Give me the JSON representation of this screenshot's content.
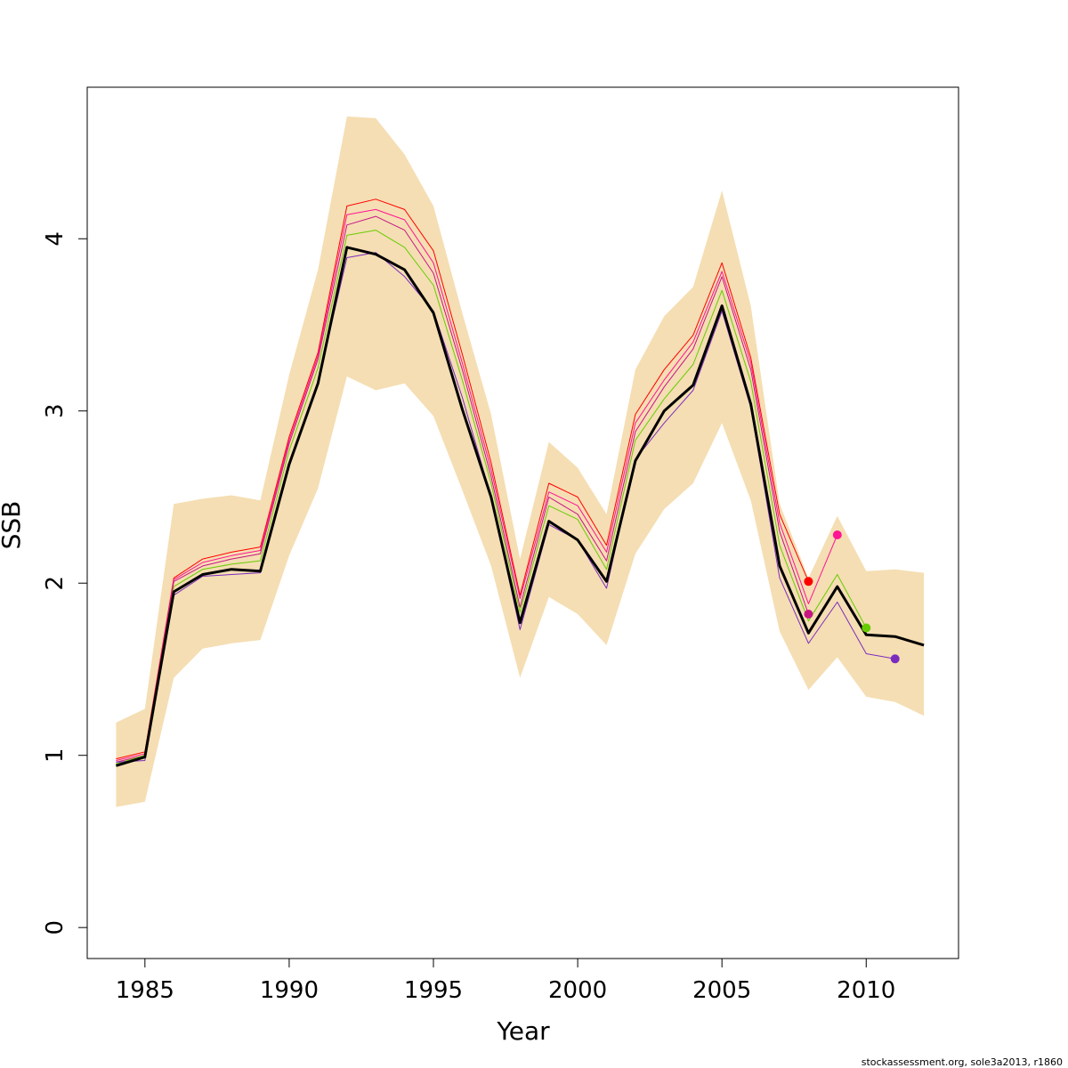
{
  "chart_data": {
    "type": "line",
    "xlabel": "Year",
    "ylabel": "SSB",
    "xlim": [
      1983,
      2013.2
    ],
    "ylim": [
      -0.18,
      4.88
    ],
    "x_ticks": [
      1985,
      1990,
      1995,
      2000,
      2005,
      2010
    ],
    "y_ticks": [
      0,
      1,
      2,
      3,
      4
    ],
    "colors": {
      "band": "#f5deb3",
      "main": "#000000"
    },
    "confidence_band": {
      "years": [
        1984,
        1985,
        1986,
        1987,
        1988,
        1989,
        1990,
        1991,
        1992,
        1993,
        1994,
        1995,
        1996,
        1997,
        1998,
        1999,
        2000,
        2001,
        2002,
        2003,
        2004,
        2005,
        2006,
        2007,
        2008,
        2009,
        2010,
        2011,
        2012
      ],
      "upper": [
        1.19,
        1.27,
        2.46,
        2.49,
        2.51,
        2.48,
        3.21,
        3.82,
        4.71,
        4.7,
        4.49,
        4.19,
        3.57,
        2.98,
        2.14,
        2.82,
        2.67,
        2.4,
        3.24,
        3.55,
        3.72,
        4.28,
        3.61,
        2.46,
        2.03,
        2.39,
        2.07,
        2.08,
        2.06
      ],
      "lower": [
        0.7,
        0.73,
        1.45,
        1.62,
        1.65,
        1.67,
        2.16,
        2.55,
        3.2,
        3.12,
        3.16,
        2.97,
        2.54,
        2.1,
        1.45,
        1.92,
        1.82,
        1.64,
        2.17,
        2.43,
        2.58,
        2.93,
        2.48,
        1.72,
        1.38,
        1.57,
        1.34,
        1.31,
        1.23
      ]
    },
    "series": [
      {
        "color": "#ff0000",
        "x": [
          1984,
          1985,
          1986,
          1987,
          1988,
          1989,
          1990,
          1991,
          1992,
          1993,
          1994,
          1995,
          1996,
          1997,
          1998,
          1999,
          2000,
          2001,
          2002,
          2003,
          2004,
          2005,
          2006,
          2007,
          2008
        ],
        "values": [
          0.98,
          1.02,
          2.03,
          2.14,
          2.18,
          2.21,
          2.85,
          3.34,
          4.19,
          4.23,
          4.17,
          3.93,
          3.33,
          2.7,
          1.93,
          2.58,
          2.5,
          2.22,
          2.98,
          3.24,
          3.44,
          3.86,
          3.31,
          2.4,
          2.01
        ]
      },
      {
        "color": "#ff1493",
        "x": [
          1984,
          1985,
          1986,
          1987,
          1988,
          1989,
          1990,
          1991,
          1992,
          1993,
          1994,
          1995,
          1996,
          1997,
          1998,
          1999,
          2000,
          2001,
          2002,
          2003,
          2004,
          2005,
          2006,
          2007,
          2008,
          2009
        ],
        "values": [
          0.97,
          1.01,
          2.02,
          2.12,
          2.16,
          2.19,
          2.83,
          3.32,
          4.14,
          4.17,
          4.11,
          3.86,
          3.28,
          2.66,
          1.91,
          2.53,
          2.45,
          2.18,
          2.93,
          3.18,
          3.4,
          3.81,
          3.28,
          2.35,
          1.88,
          2.28
        ]
      },
      {
        "color": "#c71585",
        "x": [
          1984,
          1985,
          1986,
          1987,
          1988,
          1989,
          1990,
          1991,
          1992,
          1993,
          1994,
          1995,
          1996,
          1997,
          1998,
          1999,
          2000,
          2001,
          2002,
          2003,
          2004,
          2005,
          2006,
          2007,
          2008
        ],
        "values": [
          0.96,
          1.0,
          2.01,
          2.1,
          2.14,
          2.17,
          2.81,
          3.3,
          4.08,
          4.13,
          4.05,
          3.8,
          3.24,
          2.62,
          1.86,
          2.5,
          2.4,
          2.13,
          2.88,
          3.14,
          3.36,
          3.78,
          3.24,
          2.3,
          1.82
        ]
      },
      {
        "color": "#66cc00",
        "x": [
          1984,
          1985,
          1986,
          1987,
          1988,
          1989,
          1990,
          1991,
          1992,
          1993,
          1994,
          1995,
          1996,
          1997,
          1998,
          1999,
          2000,
          2001,
          2002,
          2003,
          2004,
          2005,
          2006,
          2007,
          2008,
          2009,
          2010
        ],
        "values": [
          0.95,
          1.0,
          1.98,
          2.08,
          2.11,
          2.13,
          2.77,
          3.25,
          4.02,
          4.05,
          3.95,
          3.73,
          3.18,
          2.58,
          1.83,
          2.45,
          2.37,
          2.08,
          2.83,
          3.07,
          3.27,
          3.7,
          3.17,
          2.22,
          1.78,
          2.05,
          1.74
        ]
      },
      {
        "color": "#7b2cbf",
        "x": [
          1984,
          1985,
          1986,
          1987,
          1988,
          1989,
          1990,
          1991,
          1992,
          1993,
          1994,
          1995,
          1996,
          1997,
          1998,
          1999,
          2000,
          2001,
          2002,
          2003,
          2004,
          2005,
          2006,
          2007,
          2008,
          2009,
          2010,
          2011
        ],
        "values": [
          0.96,
          0.97,
          1.93,
          2.04,
          2.05,
          2.06,
          2.7,
          3.17,
          3.89,
          3.92,
          3.78,
          3.58,
          3.08,
          2.5,
          1.73,
          2.34,
          2.25,
          1.97,
          2.72,
          2.93,
          3.12,
          3.58,
          3.02,
          2.03,
          1.65,
          1.89,
          1.59,
          1.56
        ]
      },
      {
        "color": "#000000",
        "x": [
          1984,
          1985,
          1986,
          1987,
          1988,
          1989,
          1990,
          1991,
          1992,
          1993,
          1994,
          1995,
          1996,
          1997,
          1998,
          1999,
          2000,
          2001,
          2002,
          2003,
          2004,
          2005,
          2006,
          2007,
          2008,
          2009,
          2010,
          2011,
          2012
        ],
        "values": [
          0.94,
          0.99,
          1.95,
          2.05,
          2.08,
          2.07,
          2.69,
          3.16,
          3.95,
          3.91,
          3.82,
          3.57,
          3.01,
          2.5,
          1.77,
          2.36,
          2.25,
          2.01,
          2.71,
          3.0,
          3.15,
          3.61,
          3.04,
          2.1,
          1.71,
          1.98,
          1.7,
          1.69,
          1.64
        ]
      }
    ],
    "endpoints": [
      {
        "x": 2008,
        "y": 2.01,
        "color": "#ff0000"
      },
      {
        "x": 2009,
        "y": 2.28,
        "color": "#ff1493"
      },
      {
        "x": 2008,
        "y": 1.82,
        "color": "#c71585"
      },
      {
        "x": 2010,
        "y": 1.74,
        "color": "#66cc00"
      },
      {
        "x": 2011,
        "y": 1.56,
        "color": "#7b2cbf"
      }
    ]
  },
  "credit": "stockassessment.org, sole3a2013, r1860"
}
